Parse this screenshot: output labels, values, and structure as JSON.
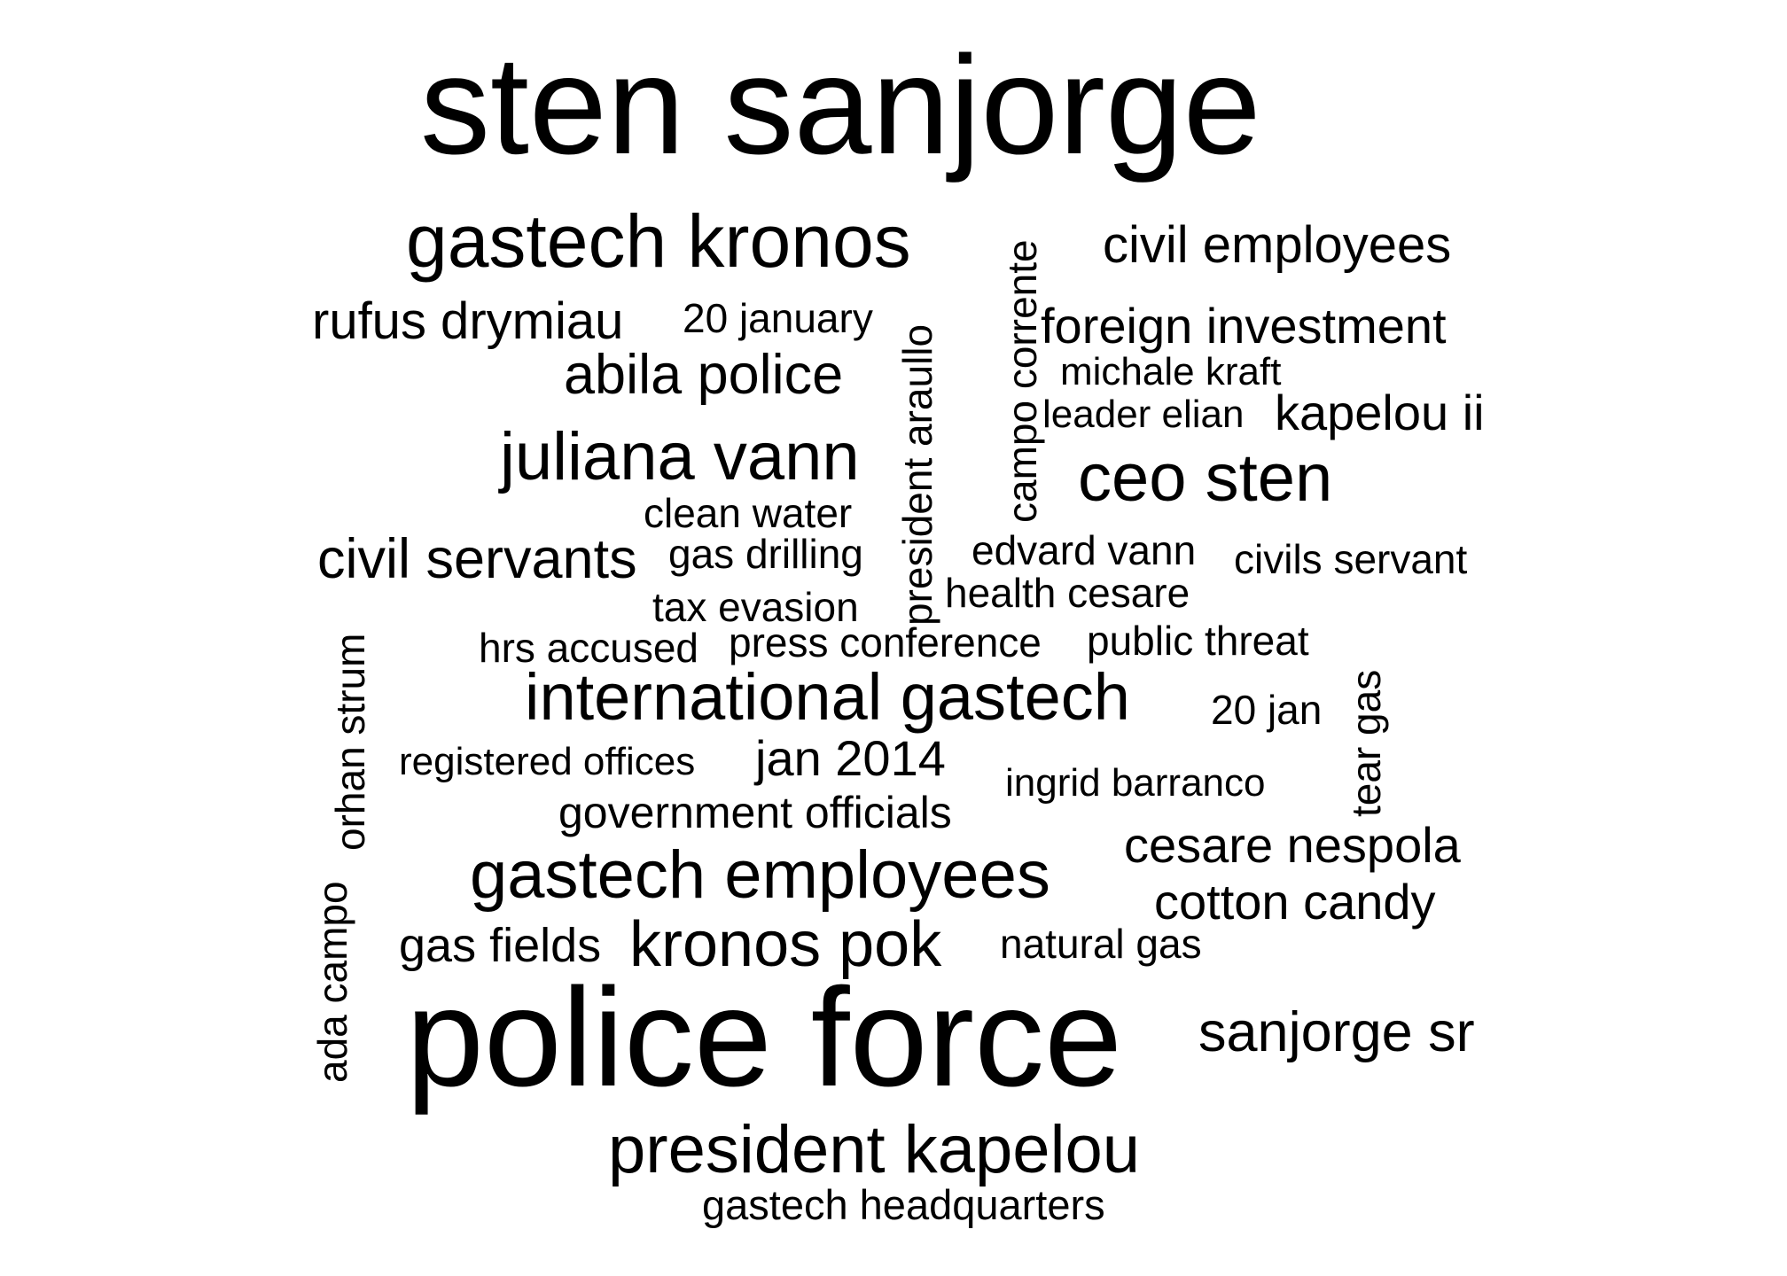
{
  "words": {
    "sten_sanjorge": "sten sanjorge",
    "police_force": "police force",
    "gastech_kronos": "gastech kronos",
    "civil_employees": "civil employees",
    "rufus_drymiau": "rufus drymiau",
    "twenty_january": "20 january",
    "foreign_investment": "foreign investment",
    "abila_police": "abila police",
    "michale_kraft": "michale kraft",
    "leader_elian": "leader elian",
    "kapelou_ii": "kapelou ii",
    "juliana_vann": "juliana vann",
    "ceo_sten": "ceo sten",
    "clean_water": "clean water",
    "civil_servants": "civil servants",
    "gas_drilling": "gas drilling",
    "edvard_vann": "edvard vann",
    "civils_servant": "civils servant",
    "health_cesare": "health cesare",
    "tax_evasion": "tax evasion",
    "hrs_accused": "hrs accused",
    "press_conference": "press conference",
    "public_threat": "public threat",
    "international_gastech": "international gastech",
    "twenty_jan": "20 jan",
    "registered_offices": "registered offices",
    "jan_2014": "jan 2014",
    "ingrid_barranco": "ingrid barranco",
    "government_officials": "government officials",
    "cesare_nespola": "cesare nespola",
    "gastech_employees": "gastech employees",
    "cotton_candy": "cotton candy",
    "gas_fields": "gas fields",
    "kronos_pok": "kronos pok",
    "natural_gas": "natural gas",
    "sanjorge_sr": "sanjorge sr",
    "president_kapelou": "president kapelou",
    "gastech_headquarters": "gastech headquarters",
    "campo_corrente": "campo corrente",
    "president_araullo": "president araullo",
    "orhan_strum": "orhan strum",
    "ada_campo": "ada campo",
    "tear_gas": "tear gas"
  }
}
